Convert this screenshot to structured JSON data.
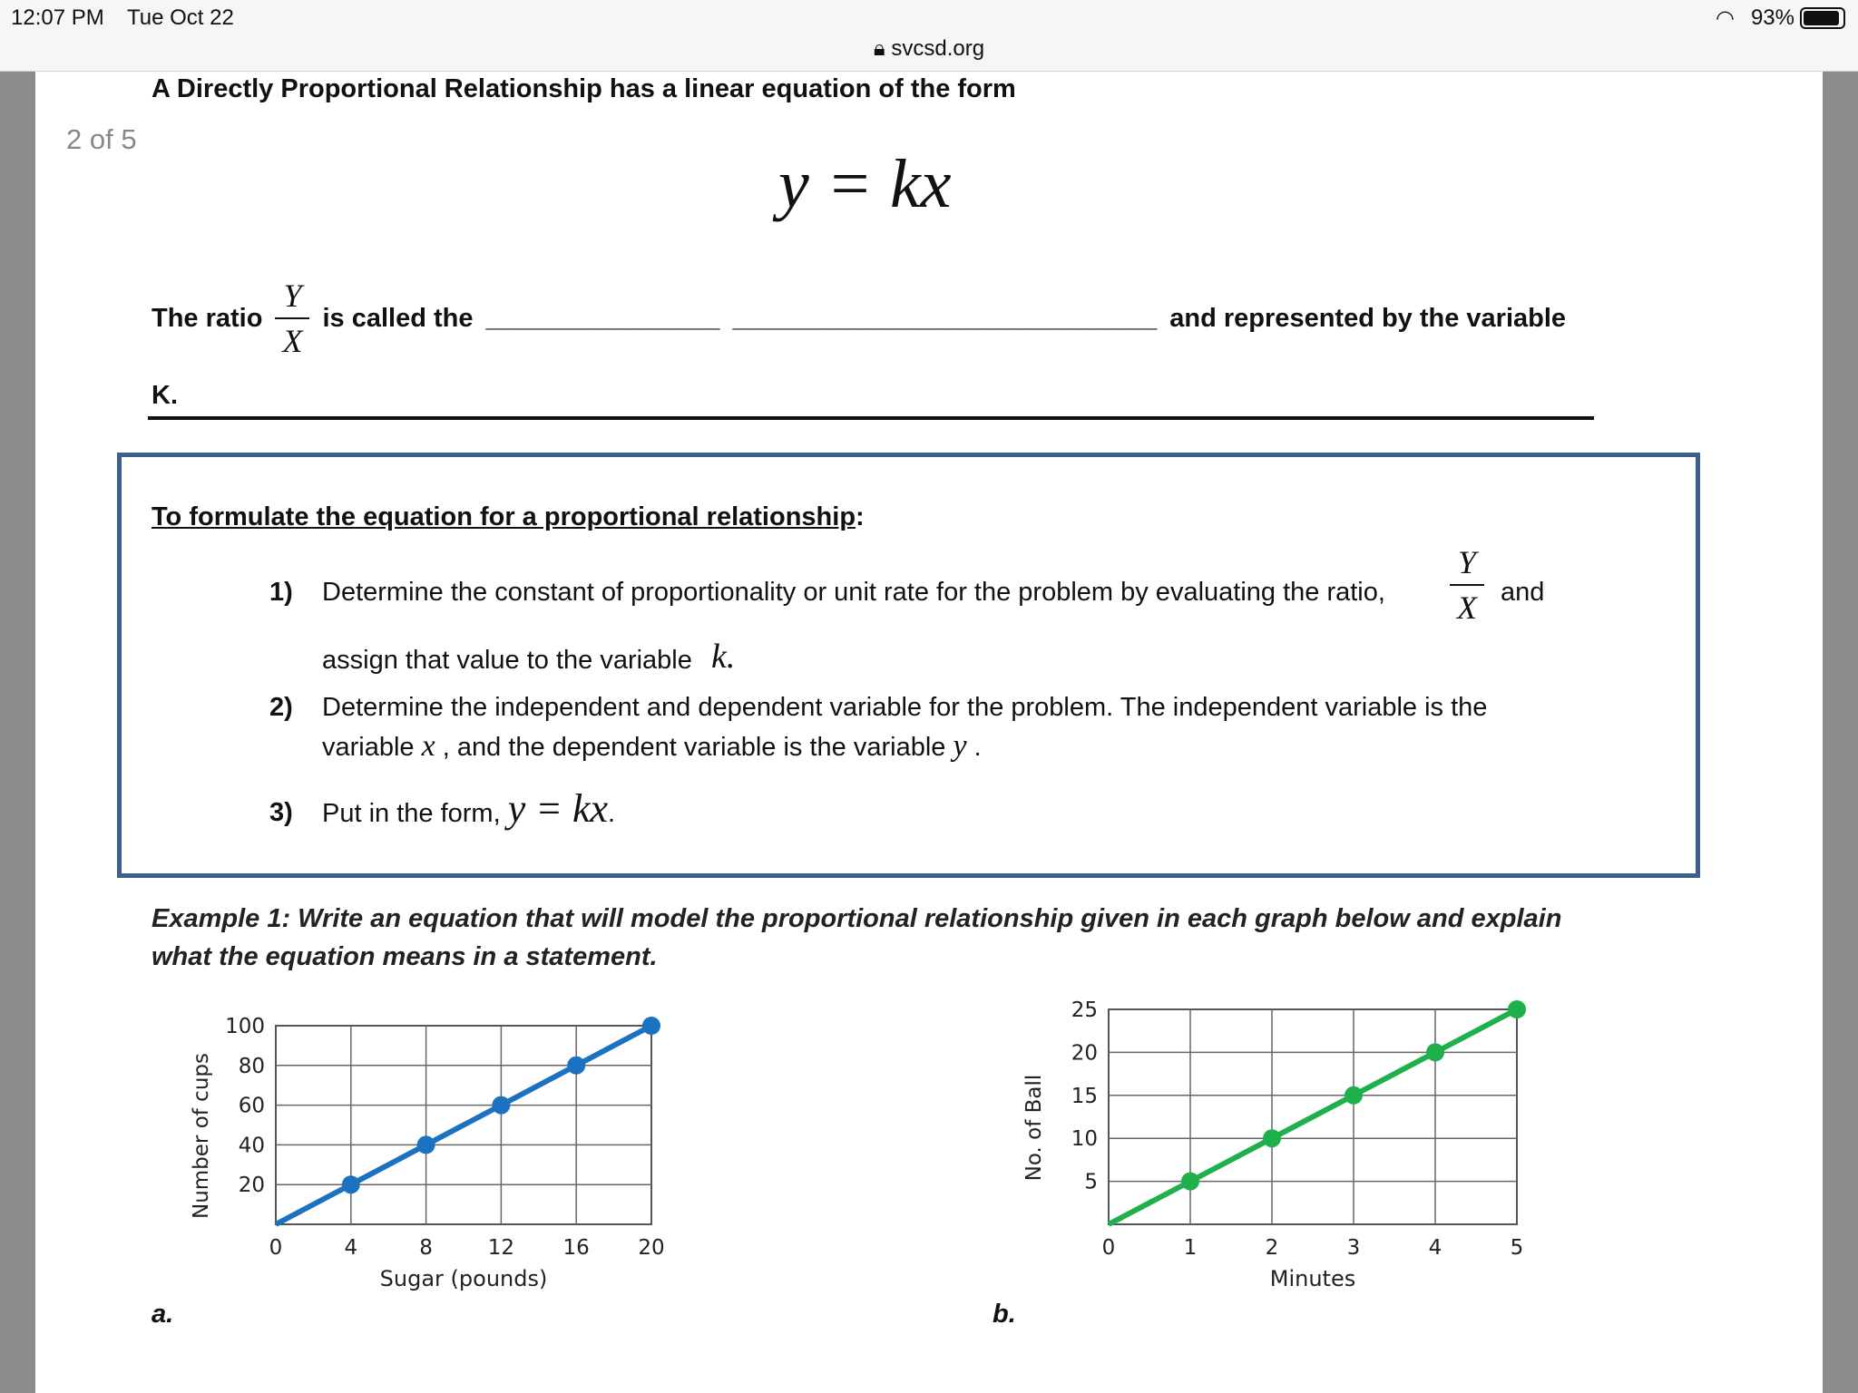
{
  "status_bar": {
    "time": "12:07 PM",
    "date": "Tue Oct 22",
    "url": "svcsd.org",
    "battery": "93%",
    "battery_level": 0.93,
    "icons": [
      "lock-icon",
      "wifi-icon",
      "battery-icon"
    ]
  },
  "page_indicator": "2 of 5",
  "intro": "A Directly Proportional Relationship has a linear equation of the form",
  "equation": "y = kx",
  "ratio": {
    "before": "The ratio",
    "num": "Y",
    "den": "X",
    "after": "is called the",
    "blank1": "________________",
    "blank2": "_____________________________",
    "tail": "and represented by the variable",
    "k": "K."
  },
  "box": {
    "heading": "To formulate the equation for a proportional relationship",
    "colon": ":",
    "steps": [
      {
        "n": "1)",
        "text": "Determine the constant of proportionality or unit rate for the problem by evaluating the ratio,",
        "num": "Y",
        "den": "X",
        "and": "and",
        "line2": "assign that value to the variable",
        "var": "k."
      },
      {
        "n": "2)",
        "text": "Determine the independent and dependent variable for the problem. The independent variable is the",
        "line2a": "variable",
        "x": "x",
        "line2b": ", and the dependent variable is the variable",
        "y": "y",
        "end": "."
      },
      {
        "n": "3)",
        "text": "Put in the form,",
        "eq": "y = kx",
        "end": "."
      }
    ]
  },
  "example": {
    "line1": "Example 1: Write an equation that will model the proportional relationship given in each graph below and explain",
    "line2": "what the equation means in a statement."
  },
  "labels": {
    "a": "a.",
    "b": "b."
  },
  "chart_data": [
    {
      "type": "line",
      "xlabel": "Sugar (pounds)",
      "ylabel": "Number of cups",
      "x": [
        0,
        4,
        8,
        12,
        16,
        20
      ],
      "y": [
        0,
        20,
        40,
        60,
        80,
        100
      ],
      "markers_at": [
        4,
        8,
        12,
        16,
        20
      ],
      "xticks": [
        "0",
        "4",
        "8",
        "12",
        "16",
        "20"
      ],
      "yticks": [
        "20",
        "40",
        "60",
        "80",
        "100"
      ],
      "xlim": [
        0,
        20
      ],
      "ylim": [
        0,
        100
      ],
      "grid": true,
      "color": "#1a72c0"
    },
    {
      "type": "line",
      "xlabel": "Minutes",
      "ylabel": "No. of Ball",
      "x": [
        0,
        1,
        2,
        3,
        4,
        5
      ],
      "y": [
        0,
        5,
        10,
        15,
        20,
        25
      ],
      "markers_at": [
        1,
        2,
        3,
        4,
        5
      ],
      "xticks": [
        "0",
        "1",
        "2",
        "3",
        "4",
        "5"
      ],
      "yticks": [
        "5",
        "10",
        "15",
        "20",
        "25"
      ],
      "xlim": [
        0,
        5
      ],
      "ylim": [
        0,
        25
      ],
      "grid": true,
      "color": "#1db04b"
    }
  ]
}
